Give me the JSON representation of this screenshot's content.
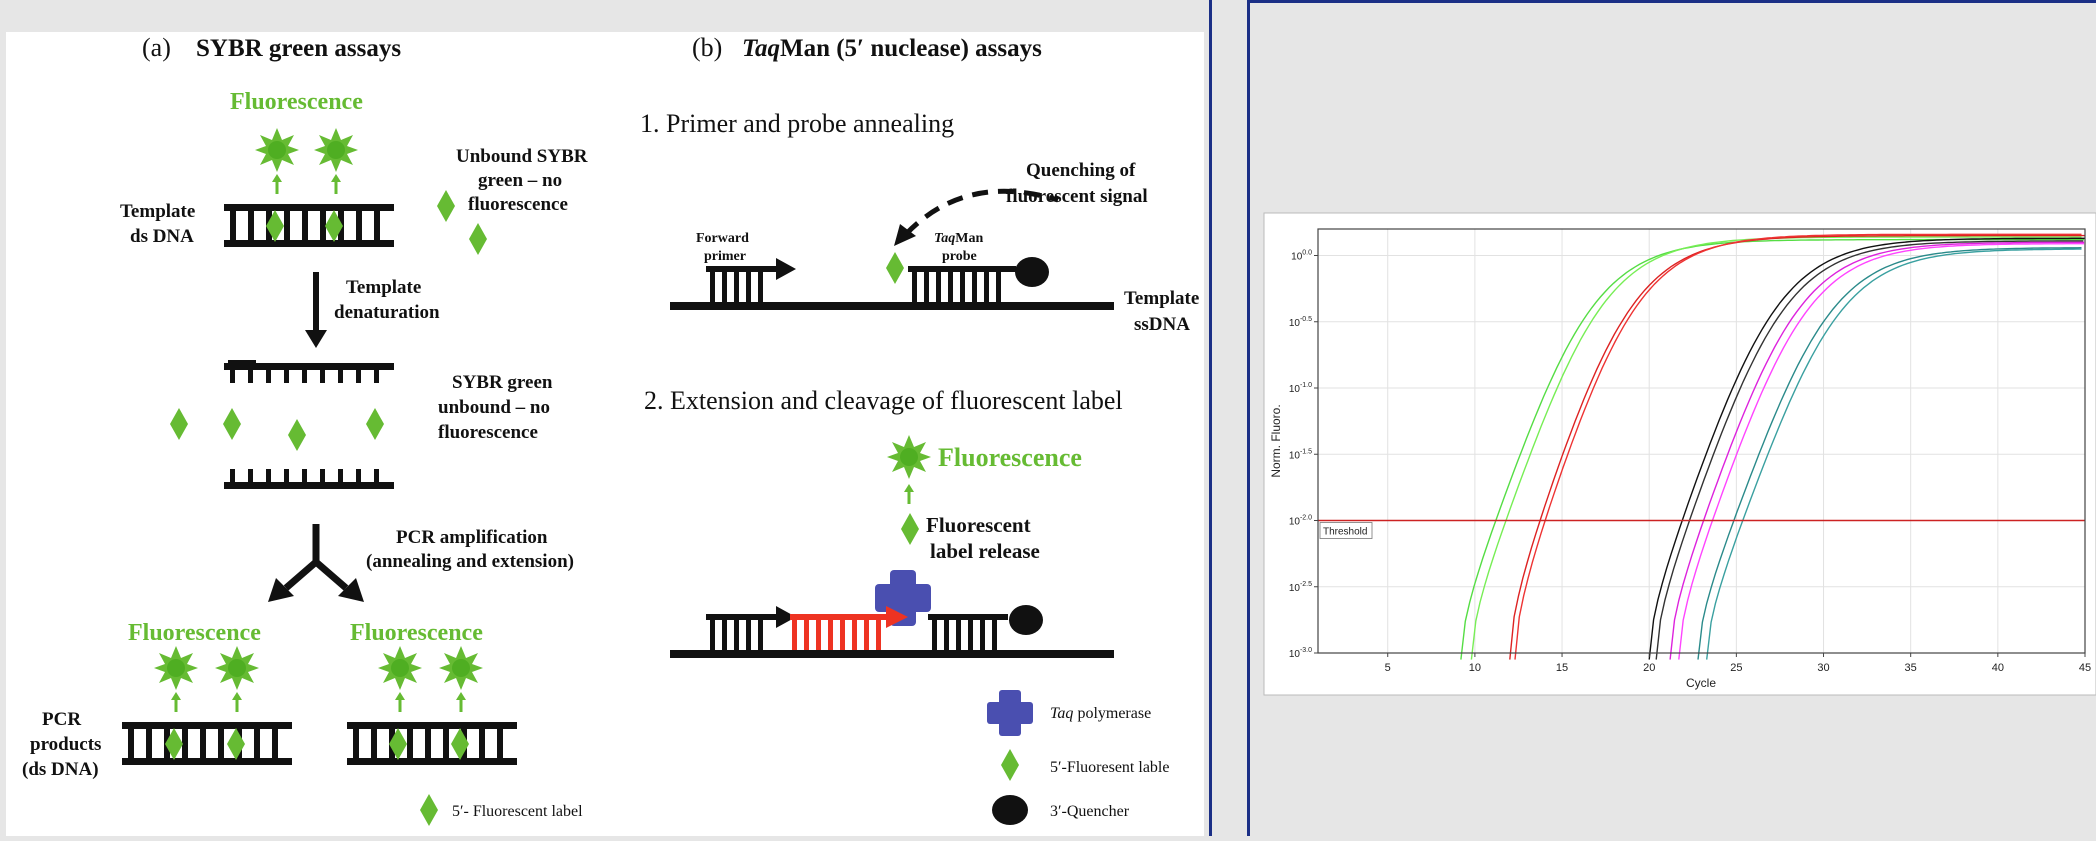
{
  "colors": {
    "green": "#66bb33",
    "green_dark": "#3c9a1e",
    "red_probe": "#ee3322",
    "polymerase": "#4a4fb0",
    "frame": "#1b2f86",
    "black": "#111111"
  },
  "panel_a": {
    "label": "(a)",
    "title": "SYBR green assays",
    "fluorescence_top": "Fluorescence",
    "template_ds_dna_line1": "Template",
    "template_ds_dna_line2": "ds DNA",
    "unbound_line1": "Unbound SYBR",
    "unbound_line2": "green – no",
    "unbound_line3": "fluorescence",
    "denaturation_line1": "Template",
    "denaturation_line2": "denaturation",
    "sybr_unbound_line1": "SYBR green",
    "sybr_unbound_line2": "unbound – no",
    "sybr_unbound_line3": "fluorescence",
    "pcr_amp_line1": "PCR amplification",
    "pcr_amp_line2": "(annealing and extension)",
    "fluorescence_left": "Fluorescence",
    "fluorescence_right": "Fluorescence",
    "pcr_products_line1": "PCR",
    "pcr_products_line2": "products",
    "pcr_products_line3": "(ds DNA)",
    "legend_label": "5′- Fluorescent label"
  },
  "panel_b": {
    "label": "(b)",
    "title_italic": "Taq",
    "title_rest": "Man (5′ nuclease) assays",
    "step1": "1. Primer and probe annealing",
    "quenching_line1": "Quenching of",
    "quenching_line2": "fluorescent signal",
    "forward_primer_line1": "Forward",
    "forward_primer_line2": "primer",
    "taqman_probe_italic": "Taq",
    "taqman_probe_rest": "Man",
    "taqman_probe_line2": "probe",
    "template_ssdna_line1": "Template",
    "template_ssdna_line2": "ssDNA",
    "step2": "2. Extension and cleavage of fluorescent label",
    "fluorescence": "Fluorescence",
    "release_line1": "Fluorescent",
    "release_line2": "label release",
    "legend_polymerase_italic": "Taq",
    "legend_polymerase_rest": " polymerase",
    "legend_fluor": "5′-Fluoresent lable",
    "legend_quencher": "3′-Quencher"
  },
  "chart_data": {
    "type": "line",
    "xlabel": "Cycle",
    "ylabel": "Norm. Fluoro.",
    "xlim": [
      1,
      45
    ],
    "ylim": [
      -3.0,
      0.2
    ],
    "log_scale_y": true,
    "x_ticks": [
      5,
      10,
      15,
      20,
      25,
      30,
      35,
      40,
      45
    ],
    "y_ticks": [
      {
        "value": 0.0,
        "label_base": "10",
        "label_exp": "0.0"
      },
      {
        "value": -0.5,
        "label_base": "10",
        "label_exp": "-0.5"
      },
      {
        "value": -1.0,
        "label_base": "10",
        "label_exp": "-1.0"
      },
      {
        "value": -1.5,
        "label_base": "10",
        "label_exp": "-1.5"
      },
      {
        "value": -2.0,
        "label_base": "10",
        "label_exp": "-2.0"
      },
      {
        "value": -2.5,
        "label_base": "10",
        "label_exp": "-2.5"
      },
      {
        "value": -3.0,
        "label_base": "10",
        "label_exp": "-3.0"
      }
    ],
    "threshold": {
      "label": "Threshold",
      "value": -2.0,
      "color": "#cc2222"
    },
    "grid": true,
    "series": [
      {
        "color": "#55dd44",
        "start": 9.2,
        "midpoint": 14.0,
        "plateau": 0.12
      },
      {
        "color": "#77ee55",
        "start": 9.8,
        "midpoint": 14.6,
        "plateau": 0.14
      },
      {
        "color": "#dd2222",
        "start": 12.0,
        "midpoint": 16.3,
        "plateau": 0.15
      },
      {
        "color": "#ee3333",
        "start": 12.3,
        "midpoint": 16.6,
        "plateau": 0.16
      },
      {
        "color": "#111111",
        "start": 20.0,
        "midpoint": 24.6,
        "plateau": 0.13
      },
      {
        "color": "#333333",
        "start": 20.4,
        "midpoint": 25.0,
        "plateau": 0.11
      },
      {
        "color": "#dd22dd",
        "start": 21.2,
        "midpoint": 25.8,
        "plateau": 0.1
      },
      {
        "color": "#ff44ff",
        "start": 21.7,
        "midpoint": 26.3,
        "plateau": 0.09
      },
      {
        "color": "#2a8a8a",
        "start": 22.8,
        "midpoint": 27.6,
        "plateau": 0.06
      },
      {
        "color": "#3aa0a0",
        "start": 23.3,
        "midpoint": 28.1,
        "plateau": 0.05
      }
    ]
  }
}
